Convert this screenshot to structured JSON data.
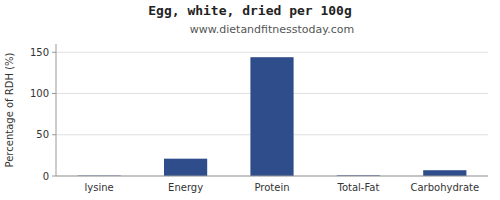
{
  "chart_data": {
    "type": "bar",
    "title": "Egg, white, dried per 100g",
    "subtitle": "www.dietandfitnesstoday.com",
    "categories": [
      "lysine",
      "Energy",
      "Protein",
      "Total-Fat",
      "Carbohydrate"
    ],
    "values": [
      0.5,
      21,
      144,
      0.8,
      7
    ],
    "color": "#2e4d8a",
    "ylabel": "Percentage of RDH (%)",
    "ylim": [
      0,
      160
    ],
    "yticks": [
      0,
      50,
      100,
      150
    ],
    "grid": true
  }
}
